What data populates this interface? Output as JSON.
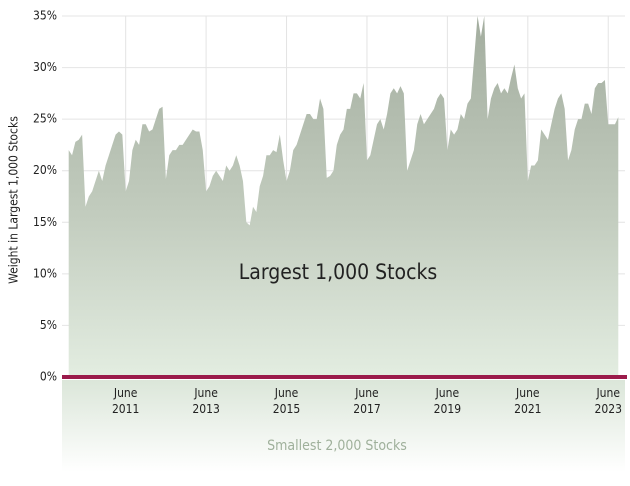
{
  "chart_data": {
    "type": "area",
    "y_label": "Weight in Largest 1,000 Stocks",
    "annotations": [
      "Largest 1,000 Stocks",
      "Smallest 2,000 Stocks"
    ],
    "x": [
      "2010-01",
      "2010-02",
      "2010-03",
      "2010-04",
      "2010-05",
      "2010-06",
      "2010-07",
      "2010-08",
      "2010-09",
      "2010-10",
      "2010-11",
      "2010-12",
      "2011-01",
      "2011-02",
      "2011-03",
      "2011-04",
      "2011-05",
      "2011-06",
      "2011-07",
      "2011-08",
      "2011-09",
      "2011-10",
      "2011-11",
      "2011-12",
      "2012-01",
      "2012-02",
      "2012-03",
      "2012-04",
      "2012-05",
      "2012-06",
      "2012-07",
      "2012-08",
      "2012-09",
      "2012-10",
      "2012-11",
      "2012-12",
      "2013-01",
      "2013-02",
      "2013-03",
      "2013-04",
      "2013-05",
      "2013-06",
      "2013-07",
      "2013-08",
      "2013-09",
      "2013-10",
      "2013-11",
      "2013-12",
      "2014-01",
      "2014-02",
      "2014-03",
      "2014-04",
      "2014-05",
      "2014-06",
      "2014-07",
      "2014-08",
      "2014-09",
      "2014-10",
      "2014-11",
      "2014-12",
      "2015-01",
      "2015-02",
      "2015-03",
      "2015-04",
      "2015-05",
      "2015-06",
      "2015-07",
      "2015-08",
      "2015-09",
      "2015-10",
      "2015-11",
      "2015-12",
      "2016-01",
      "2016-02",
      "2016-03",
      "2016-04",
      "2016-05",
      "2016-06",
      "2016-07",
      "2016-08",
      "2016-09",
      "2016-10",
      "2016-11",
      "2016-12",
      "2017-01",
      "2017-02",
      "2017-03",
      "2017-04",
      "2017-05",
      "2017-06",
      "2017-07",
      "2017-08",
      "2017-09",
      "2017-10",
      "2017-11",
      "2017-12",
      "2018-01",
      "2018-02",
      "2018-03",
      "2018-04",
      "2018-05",
      "2018-06",
      "2018-07",
      "2018-08",
      "2018-09",
      "2018-10",
      "2018-11",
      "2018-12",
      "2019-01",
      "2019-02",
      "2019-03",
      "2019-04",
      "2019-05",
      "2019-06",
      "2019-07",
      "2019-08",
      "2019-09",
      "2019-10",
      "2019-11",
      "2019-12",
      "2020-01",
      "2020-02",
      "2020-03",
      "2020-04",
      "2020-05",
      "2020-06",
      "2020-07",
      "2020-08",
      "2020-09",
      "2020-10",
      "2020-11",
      "2020-12",
      "2021-01",
      "2021-02",
      "2021-03",
      "2021-04",
      "2021-05",
      "2021-06",
      "2021-07",
      "2021-08",
      "2021-09",
      "2021-10",
      "2021-11",
      "2021-12",
      "2022-01",
      "2022-02",
      "2022-03",
      "2022-04",
      "2022-05",
      "2022-06",
      "2022-07",
      "2022-08",
      "2022-09",
      "2022-10",
      "2022-11",
      "2022-12",
      "2023-01",
      "2023-02",
      "2023-03",
      "2023-04",
      "2023-05",
      "2023-06",
      "2023-07",
      "2023-08",
      "2023-09"
    ],
    "series": [
      {
        "color": "#a8b1a3",
        "values": [
          22,
          21.5,
          22.8,
          23,
          23.5,
          16.5,
          17.5,
          18,
          19,
          20,
          19,
          20.5,
          21.5,
          22.5,
          23.5,
          23.8,
          23.5,
          18,
          19,
          22,
          23,
          22.5,
          24.5,
          24.5,
          23.8,
          24,
          25,
          26,
          26.2,
          19.2,
          21.5,
          22,
          22,
          22.5,
          22.5,
          23,
          23.5,
          24,
          23.8,
          23.8,
          22,
          18,
          18.5,
          19.5,
          20,
          19.5,
          19,
          20.5,
          20,
          20.5,
          21.5,
          20.5,
          19,
          15,
          14.7,
          16.5,
          16,
          18.5,
          19.5,
          21.5,
          21.5,
          22,
          21.8,
          23.5,
          21,
          19,
          20,
          22,
          22.5,
          23.5,
          24.5,
          25.5,
          25.5,
          25,
          25,
          27,
          26,
          19.3,
          19.5,
          20,
          22.5,
          23.5,
          24,
          26,
          26,
          27.5,
          27.5,
          27,
          28.5,
          21,
          21.5,
          23,
          24.5,
          25,
          24,
          25.5,
          27.5,
          28,
          27.5,
          28.2,
          27.5,
          20,
          21,
          22,
          24.5,
          25.5,
          24.5,
          25,
          25.5,
          26,
          27,
          27.5,
          27,
          22,
          24,
          23.5,
          24,
          25.5,
          25,
          26.5,
          27,
          31,
          35,
          33,
          35,
          25,
          27,
          28,
          28.5,
          27.5,
          28,
          27.5,
          29,
          30.3,
          28,
          27,
          27.5,
          19,
          20.5,
          20.5,
          21,
          24,
          23.5,
          23,
          24.5,
          26,
          27,
          27.5,
          26,
          21,
          22,
          24,
          25,
          25,
          26.5,
          26.5,
          25.5,
          28,
          28.5,
          28.5,
          28.8,
          24.5,
          24.5,
          24.5,
          25.2
        ]
      }
    ],
    "xlim": [
      "2009-11",
      "2023-11"
    ],
    "xticks": [
      {
        "value": "2011-06",
        "label": "June 2011"
      },
      {
        "value": "2013-06",
        "label": "June 2013"
      },
      {
        "value": "2015-06",
        "label": "June 2015"
      },
      {
        "value": "2017-06",
        "label": "June 2017"
      },
      {
        "value": "2019-06",
        "label": "June 2019"
      },
      {
        "value": "2021-06",
        "label": "June 2021"
      },
      {
        "value": "2023-06",
        "label": "June 2023"
      }
    ],
    "ylim": [
      0,
      35
    ],
    "yticks": [
      {
        "value": 0,
        "label": "0%"
      },
      {
        "value": 5,
        "label": "5%"
      },
      {
        "value": 10,
        "label": "10%"
      },
      {
        "value": 15,
        "label": "15%"
      },
      {
        "value": 20,
        "label": "20%"
      },
      {
        "value": 25,
        "label": "25%"
      },
      {
        "value": 30,
        "label": "30%"
      },
      {
        "value": 35,
        "label": "35%"
      }
    ],
    "grid": true,
    "zero_line_color": "#9b1b4b"
  }
}
